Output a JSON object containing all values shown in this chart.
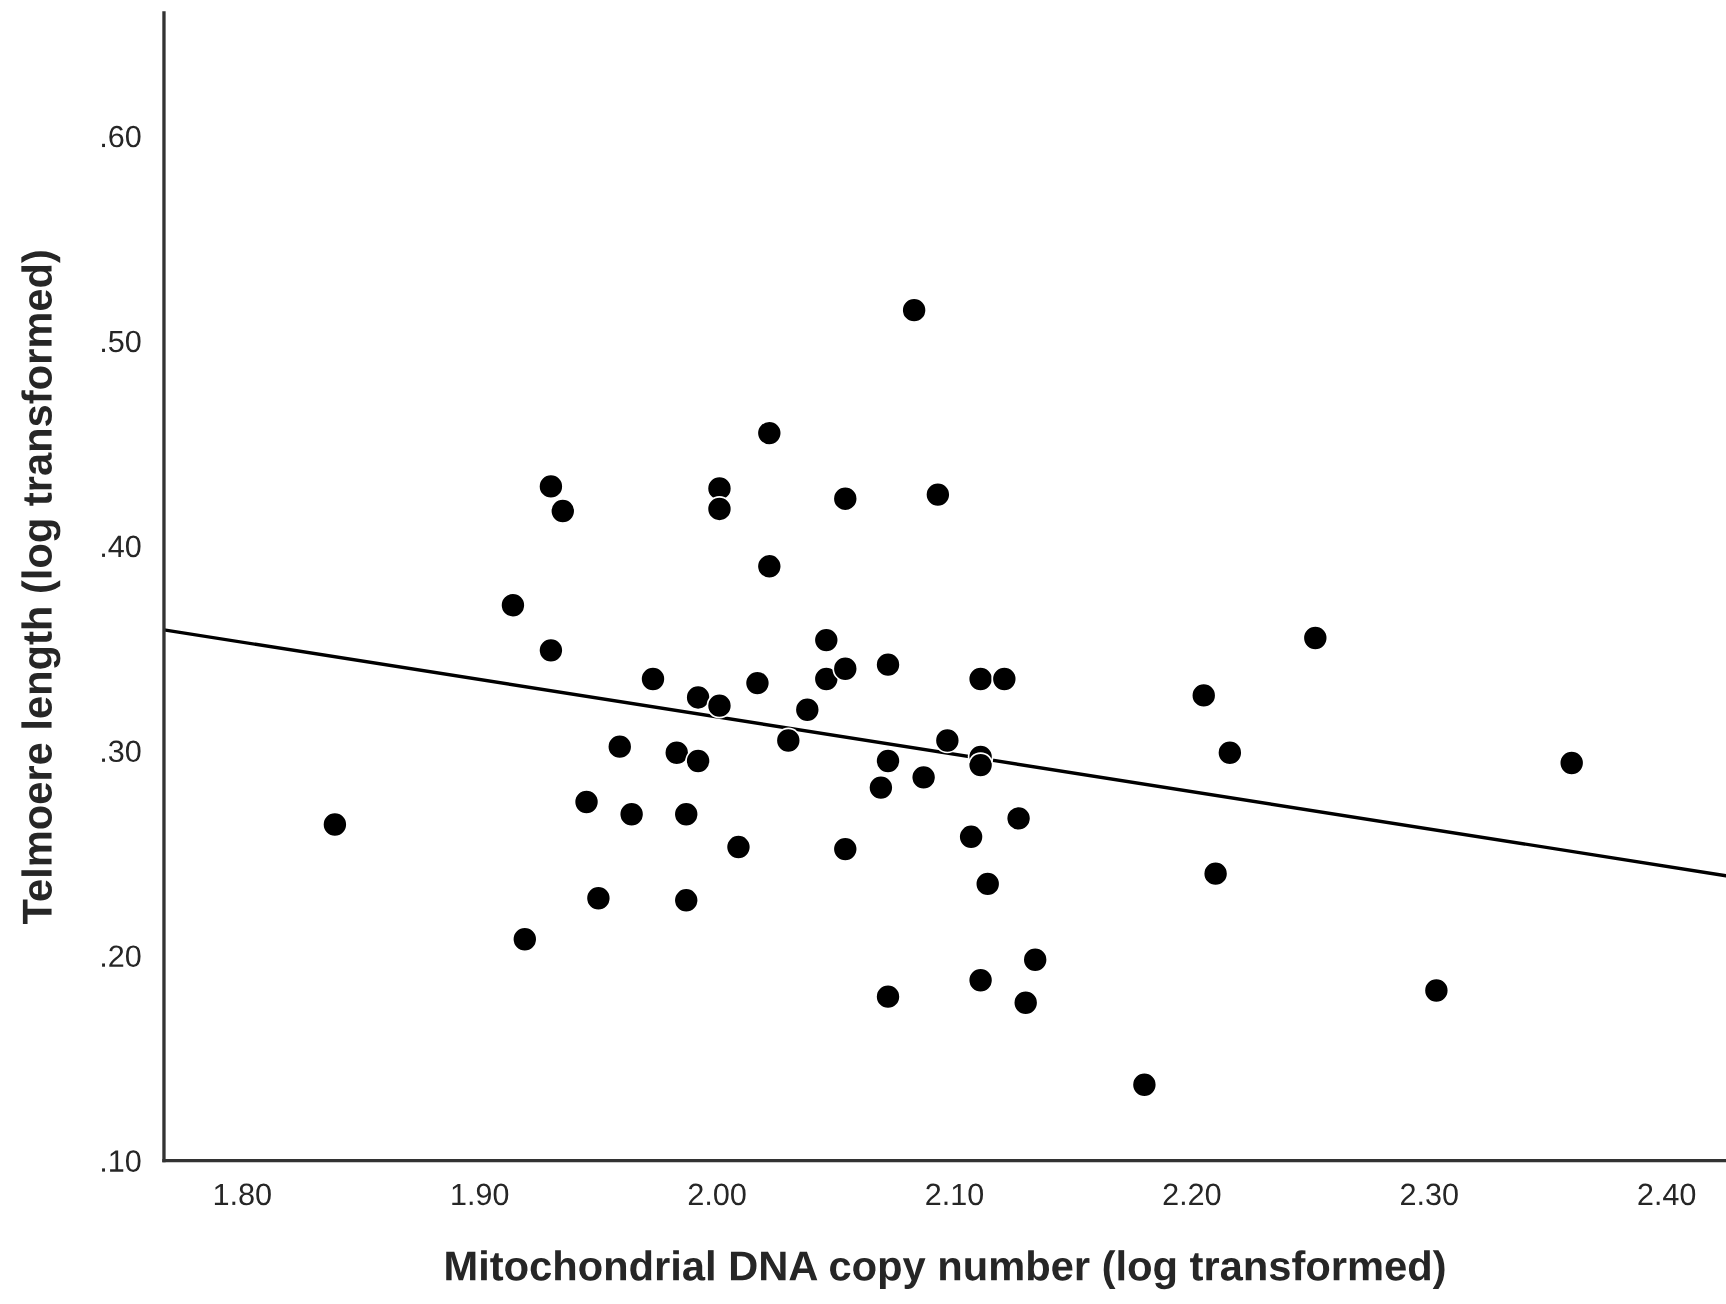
{
  "chart_data": {
    "type": "scatter",
    "xlabel": "Mitochondrial DNA copy number (log transformed)",
    "ylabel": "Telmoere length (log transformed)",
    "xlim": [
      1.767,
      2.425
    ],
    "ylim": [
      0.1,
      0.66
    ],
    "xticks": [
      {
        "value": 1.8,
        "label": "1.80"
      },
      {
        "value": 1.9,
        "label": "1.90"
      },
      {
        "value": 2.0,
        "label": "2.00"
      },
      {
        "value": 2.1,
        "label": "2.10"
      },
      {
        "value": 2.2,
        "label": "2.20"
      },
      {
        "value": 2.3,
        "label": "2.30"
      },
      {
        "value": 2.4,
        "label": "2.40"
      }
    ],
    "yticks": [
      {
        "value": 0.1,
        "label": ".10"
      },
      {
        "value": 0.2,
        "label": ".20"
      },
      {
        "value": 0.3,
        "label": ".30"
      },
      {
        "value": 0.4,
        "label": ".40"
      },
      {
        "value": 0.5,
        "label": ".50"
      },
      {
        "value": 0.6,
        "label": ".60"
      }
    ],
    "grid": false,
    "series": [
      {
        "marker": "circle",
        "color": "#000000",
        "x": [
          1.839,
          1.914,
          1.919,
          1.93,
          1.935,
          1.93,
          1.945,
          1.95,
          1.959,
          1.964,
          1.973,
          1.983,
          1.987,
          1.987,
          1.992,
          1.992,
          2.001,
          2.001,
          2.001,
          2.009,
          2.017,
          2.022,
          2.022,
          2.03,
          2.038,
          2.046,
          2.046,
          2.054,
          2.054,
          2.054,
          2.069,
          2.072,
          2.072,
          2.072,
          2.083,
          2.093,
          2.087,
          2.097,
          2.111,
          2.121,
          2.111,
          2.111,
          2.107,
          2.127,
          2.114,
          2.134,
          2.111,
          2.13,
          2.18,
          2.205,
          2.216,
          2.21,
          2.252,
          2.303,
          2.36
        ],
        "values": [
          0.264,
          0.371,
          0.208,
          0.429,
          0.417,
          0.349,
          0.275,
          0.228,
          0.302,
          0.269,
          0.335,
          0.299,
          0.269,
          0.227,
          0.326,
          0.295,
          0.428,
          0.418,
          0.322,
          0.253,
          0.333,
          0.455,
          0.39,
          0.305,
          0.32,
          0.354,
          0.335,
          0.423,
          0.34,
          0.252,
          0.282,
          0.342,
          0.295,
          0.18,
          0.515,
          0.425,
          0.287,
          0.305,
          0.335,
          0.335,
          0.297,
          0.293,
          0.258,
          0.267,
          0.235,
          0.198,
          0.188,
          0.177,
          0.137,
          0.327,
          0.299,
          0.24,
          0.355,
          0.183,
          0.294
        ]
      },
      {
        "type": "line",
        "color": "#000000",
        "line_style": "solid",
        "marker": "none",
        "x": [
          1.767,
          2.425
        ],
        "values": [
          0.359,
          0.239
        ]
      }
    ]
  }
}
